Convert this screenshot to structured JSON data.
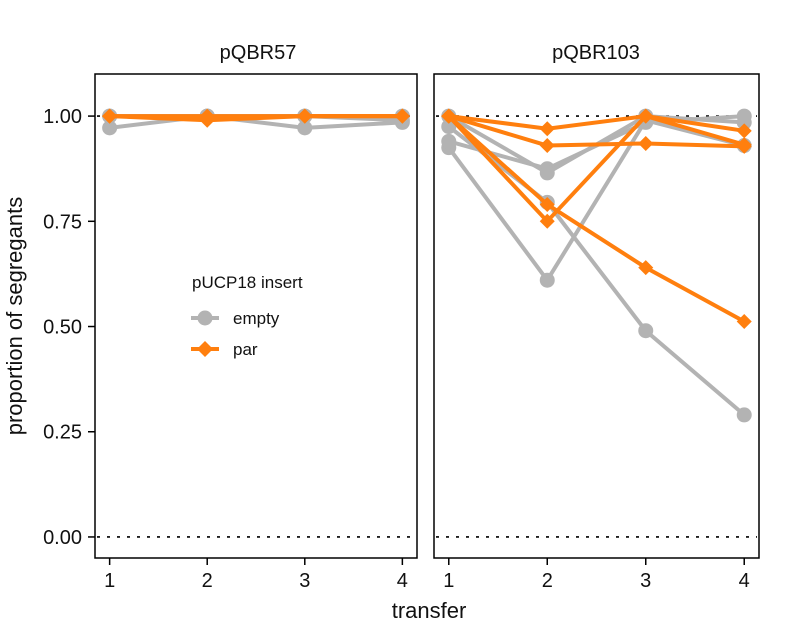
{
  "chart_data": {
    "type": "line",
    "xlabel": "transfer",
    "ylabel": "proportion of segregants",
    "x": [
      1,
      2,
      3,
      4
    ],
    "xlim": [
      0.85,
      4.15
    ],
    "ylim": [
      -0.05,
      1.1
    ],
    "yticks": [
      0.0,
      0.25,
      0.5,
      0.75,
      1.0
    ],
    "ytick_labels": [
      "0.00",
      "0.25",
      "0.50",
      "0.75",
      "1.00"
    ],
    "xtick_labels": [
      "1",
      "2",
      "3",
      "4"
    ],
    "reference_lines": [
      0,
      1
    ],
    "colors": {
      "empty": "#b3b3b3",
      "par": "#ff7f0e"
    },
    "legend": {
      "title": "pUCP18 insert",
      "placement": "left panel, middle",
      "entries": [
        {
          "label": "empty",
          "marker": "circle",
          "color": "#b3b3b3"
        },
        {
          "label": "par",
          "marker": "diamond",
          "color": "#ff7f0e"
        }
      ]
    },
    "panels": [
      {
        "title": "pQBR57",
        "series": [
          {
            "group": "empty",
            "values": [
              0.972,
              1.0,
              0.972,
              0.985
            ]
          },
          {
            "group": "empty",
            "values": [
              1.0,
              1.0,
              1.0,
              1.0
            ]
          },
          {
            "group": "empty",
            "values": [
              1.0,
              1.0,
              1.0,
              0.99
            ]
          },
          {
            "group": "par",
            "values": [
              1.0,
              0.99,
              1.0,
              1.0
            ]
          },
          {
            "group": "par",
            "values": [
              1.0,
              1.0,
              1.0,
              1.0
            ]
          },
          {
            "group": "par",
            "values": [
              1.0,
              0.995,
              1.0,
              1.0
            ]
          }
        ]
      },
      {
        "title": "pQBR103",
        "series": [
          {
            "group": "empty",
            "values": [
              0.925,
              0.61,
              0.99,
              0.93
            ]
          },
          {
            "group": "empty",
            "values": [
              0.975,
              0.795,
              0.49,
              0.29
            ]
          },
          {
            "group": "empty",
            "values": [
              0.94,
              0.875,
              0.985,
              1.0
            ]
          },
          {
            "group": "empty",
            "values": [
              1.0,
              0.865,
              1.0,
              0.985
            ]
          },
          {
            "group": "par",
            "values": [
              1.0,
              0.97,
              1.0,
              0.965
            ]
          },
          {
            "group": "par",
            "values": [
              1.0,
              0.93,
              0.935,
              0.928
            ]
          },
          {
            "group": "par",
            "values": [
              1.0,
              0.75,
              1.0,
              0.932
            ]
          },
          {
            "group": "par",
            "values": [
              1.0,
              0.79,
              0.64,
              0.512
            ]
          }
        ]
      }
    ]
  }
}
